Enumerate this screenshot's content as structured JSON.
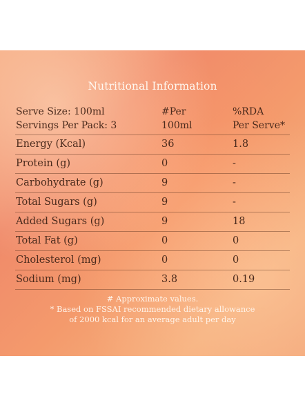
{
  "panel": {
    "title": "Nutritional Information",
    "header": {
      "col1_line1": "Serve Size: 100ml",
      "col1_line2": "Servings Per Pack: 3",
      "col2_line1": "#Per",
      "col2_line2": "100ml",
      "col3_line1": "%RDA",
      "col3_line2": "Per Serve*"
    },
    "rows": [
      {
        "label": "Energy (Kcal)",
        "per100": "36",
        "rda": "1.8"
      },
      {
        "label": "Protein (g)",
        "per100": "0",
        "rda": "-"
      },
      {
        "label": "Carbohydrate (g)",
        "per100": "9",
        "rda": "-"
      },
      {
        "label": "Total Sugars (g)",
        "per100": "9",
        "rda": "-"
      },
      {
        "label": "Added Sugars (g)",
        "per100": "9",
        "rda": "18"
      },
      {
        "label": "Total Fat (g)",
        "per100": "0",
        "rda": "0"
      },
      {
        "label": "Cholesterol (mg)",
        "per100": "0",
        "rda": "0"
      },
      {
        "label": "Sodium (mg)",
        "per100": "3.8",
        "rda": "0.19"
      }
    ],
    "footnotes": {
      "line1": "# Approximate values.",
      "line2": "* Based on FSSAI recommended dietary allowance",
      "line3": "of 2000 kcal for an average adult per day"
    }
  }
}
